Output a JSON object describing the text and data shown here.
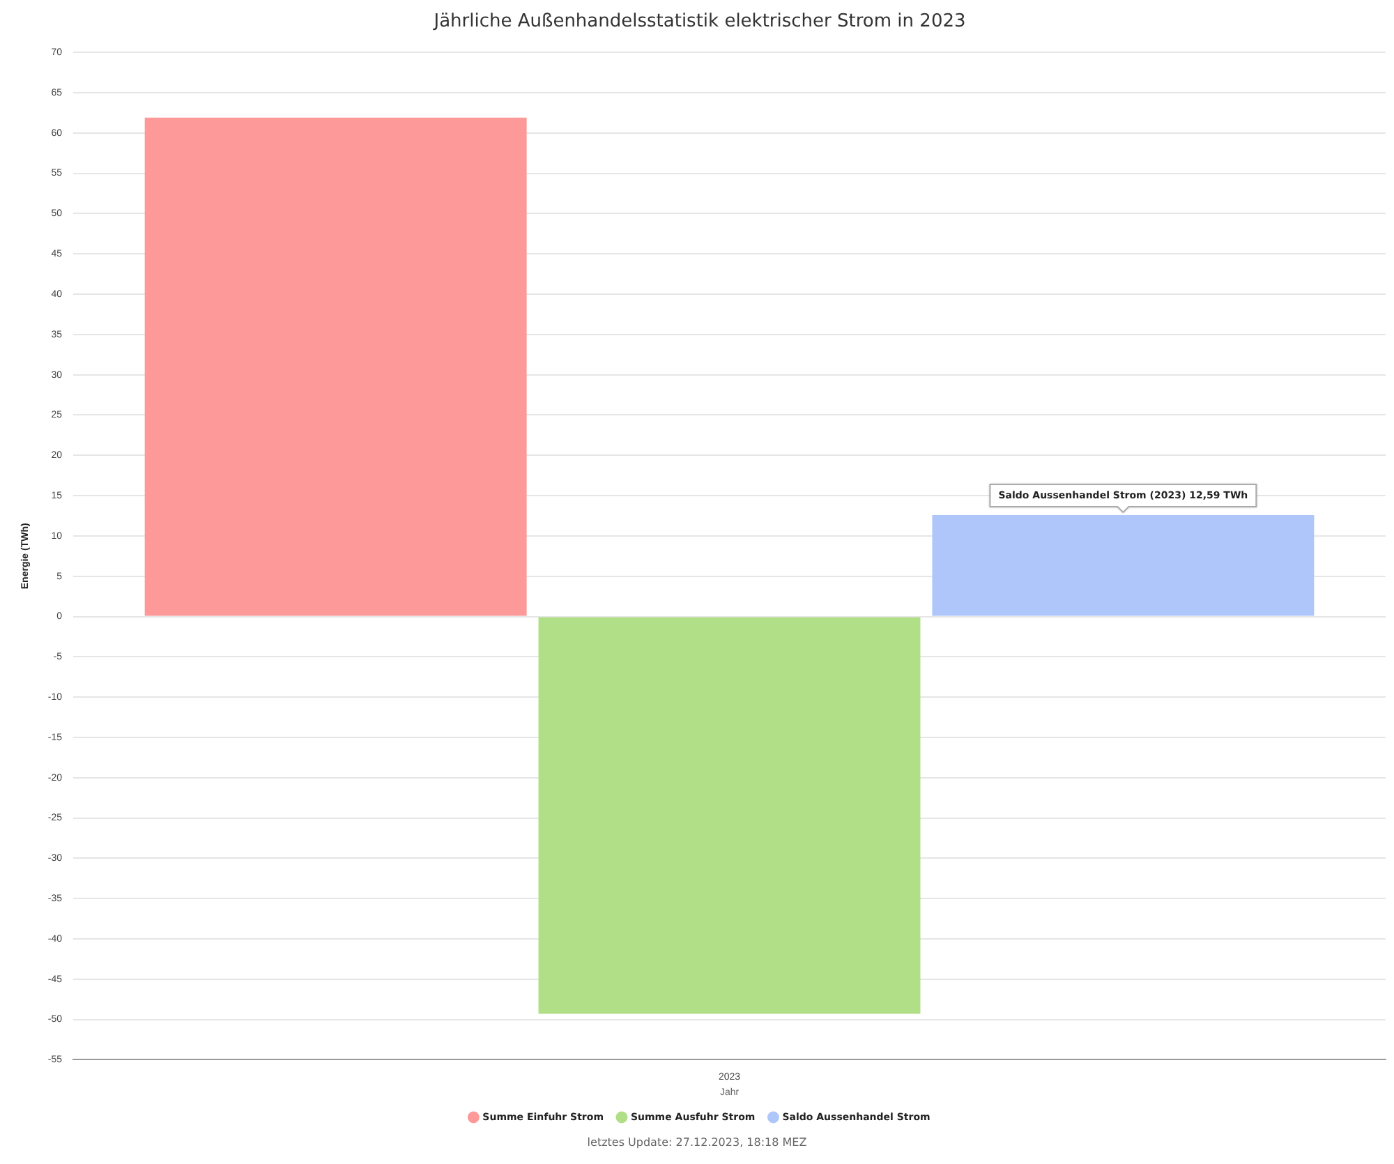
{
  "chart_data": {
    "type": "bar",
    "title": "Jährliche Außenhandelsstatistik elektrischer Strom in 2023",
    "xlabel": "Jahr",
    "ylabel": "Energie (TWh)",
    "categories": [
      "2023"
    ],
    "series": [
      {
        "name": "Summe Einfuhr Strom",
        "color": "#fe9999",
        "values": [
          61.9
        ]
      },
      {
        "name": "Summe Ausfuhr Strom",
        "color": "#b1df87",
        "values": [
          -49.3
        ]
      },
      {
        "name": "Saldo Aussenhandel Strom",
        "color": "#aec6f9",
        "values": [
          12.59
        ]
      }
    ],
    "ylim": [
      -55,
      70
    ],
    "yticks": [
      -55,
      -50,
      -45,
      -40,
      -35,
      -30,
      -25,
      -20,
      -15,
      -10,
      -5,
      0,
      5,
      10,
      15,
      20,
      25,
      30,
      35,
      40,
      45,
      50,
      55,
      60,
      65,
      70
    ],
    "grid": "y",
    "legend": "bottom",
    "annotations": [
      "Saldo Aussenhandel Strom (2023) 12,59 TWh",
      "letztes Update: 27.12.2023, 18:18 MEZ"
    ]
  }
}
